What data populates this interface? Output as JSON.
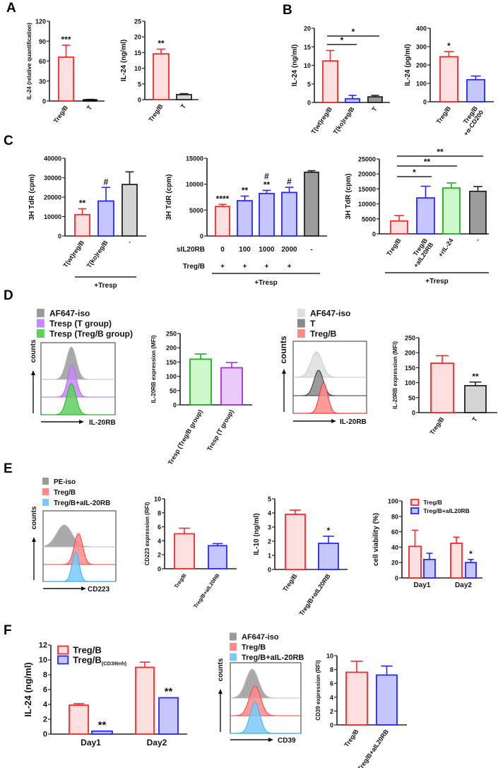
{
  "panels": {
    "A": "A",
    "B": "B",
    "C": "C",
    "D": "D",
    "E": "E",
    "F": "F"
  },
  "styles": {
    "red": [
      "#ff2626",
      "#ffe0e0"
    ],
    "blue": [
      "#2626ff",
      "#c6c6ff"
    ],
    "black": [
      "#111111",
      "#111111"
    ],
    "gray": [
      "#222222",
      "#d4d4d4"
    ],
    "dark": [
      "#222222",
      "#9c9c9c"
    ],
    "green": [
      "#1fae1f",
      "#ccf8cc"
    ],
    "purple": [
      "#a030e0",
      "#eccafa"
    ]
  },
  "chart_data": [
    {
      "id": "A1",
      "type": "bar",
      "ylabel": "IL-24 (relative quantification)",
      "ylim": [
        0,
        120
      ],
      "ticks": [
        0,
        30,
        60,
        90,
        120
      ],
      "categories": [
        "Treg/B",
        "T"
      ],
      "values": [
        66,
        2
      ],
      "errors": [
        18,
        0.5
      ],
      "styles": [
        "red",
        "black"
      ],
      "sig": [
        "***",
        ""
      ]
    },
    {
      "id": "A2",
      "type": "bar",
      "ylabel": "IL-24 (ng/ml)",
      "ylim": [
        0,
        25
      ],
      "ticks": [
        0,
        5,
        10,
        15,
        20,
        25
      ],
      "categories": [
        "Treg/B",
        "T"
      ],
      "values": [
        14.6,
        1.6
      ],
      "errors": [
        1.5,
        0.3
      ],
      "styles": [
        "red",
        "gray"
      ],
      "sig": [
        "**",
        ""
      ]
    },
    {
      "id": "B1",
      "type": "bar",
      "ylabel": "IL-24 (ng/ml)",
      "ylim": [
        0,
        20
      ],
      "ticks": [
        0,
        5,
        10,
        15,
        20
      ],
      "categories": [
        "T(wt)reg/B",
        "T(ko)reg/B",
        "T"
      ],
      "values": [
        11.2,
        1.0,
        1.5
      ],
      "errors": [
        2.8,
        0.9,
        0.4
      ],
      "styles": [
        "red",
        "blue",
        "dark"
      ],
      "sig": [
        "",
        "",
        ""
      ],
      "brackets": [
        {
          "from": 0,
          "to": 2,
          "text": "*"
        },
        {
          "from": 0,
          "to": 1,
          "text": "*"
        }
      ]
    },
    {
      "id": "B2",
      "type": "bar",
      "ylabel": "IL-24 (pg/ml)",
      "ylim": [
        0,
        400
      ],
      "ticks": [
        0,
        100,
        200,
        300,
        400
      ],
      "categories": [
        "Treg/B",
        "Treg/B\n+α-CD200"
      ],
      "values": [
        245,
        120
      ],
      "errors": [
        28,
        20
      ],
      "styles": [
        "red",
        "blue"
      ],
      "sig": [
        "*",
        ""
      ]
    },
    {
      "id": "C1",
      "type": "bar",
      "ylabel": "3H TdR (cpm)",
      "ylim": [
        0,
        40000
      ],
      "ticks": [
        0,
        10000,
        20000,
        30000,
        40000
      ],
      "categories": [
        "T(wt)reg/B",
        "T(ko)reg/B",
        "-"
      ],
      "values": [
        11000,
        18000,
        26500
      ],
      "errors": [
        3000,
        7000,
        6500
      ],
      "styles": [
        "red",
        "blue",
        "gray"
      ],
      "sig": [
        "**",
        "#",
        ""
      ],
      "footer": "+Tresp"
    },
    {
      "id": "C2",
      "type": "bar",
      "ylabel": "3H TdR (cpm)",
      "ylim": [
        0,
        15000
      ],
      "ticks": [
        0,
        5000,
        10000,
        15000
      ],
      "values": [
        5700,
        6800,
        8200,
        8400,
        12300
      ],
      "errors": [
        400,
        900,
        600,
        1000,
        300
      ],
      "styles": [
        "red",
        "blue",
        "blue",
        "blue",
        "dark"
      ],
      "sig": [
        "****",
        "**",
        "#\n**",
        "#",
        ""
      ],
      "rows": [
        {
          "label": "sIL20RB",
          "cells": [
            "0",
            "100",
            "1000",
            "2000",
            "-"
          ]
        },
        {
          "label": "Treg/B",
          "cells": [
            "+",
            "+",
            "+",
            "+",
            ""
          ]
        }
      ],
      "footer": "+Tresp"
    },
    {
      "id": "C3",
      "type": "bar",
      "ylabel": "3H TdR (cpm)",
      "ylim": [
        0,
        25000
      ],
      "ticks": [
        0,
        5000,
        10000,
        15000,
        20000,
        25000
      ],
      "categories": [
        "Treg/B",
        "Treg/B\n+aIL20RB",
        "+rIL-24",
        "-"
      ],
      "values": [
        4300,
        12000,
        15300,
        14200
      ],
      "errors": [
        1800,
        3900,
        1700,
        1600
      ],
      "styles": [
        "red",
        "blue",
        "green",
        "dark"
      ],
      "sig": [
        "",
        "",
        "",
        ""
      ],
      "brackets": [
        {
          "from": 0,
          "to": 3,
          "text": "**"
        },
        {
          "from": 0,
          "to": 2,
          "text": "**"
        },
        {
          "from": 0,
          "to": 1,
          "text": "*"
        }
      ],
      "footer": "+Tresp"
    },
    {
      "id": "D2",
      "type": "bar",
      "ylabel": "IL-20RB expression (MFI)",
      "ylim": [
        0,
        250
      ],
      "ticks": [
        0,
        50,
        100,
        150,
        200,
        250
      ],
      "categories": [
        "Tresp (Treg/B group)",
        "Tresp (T group)"
      ],
      "values": [
        160,
        130
      ],
      "errors": [
        18,
        18
      ],
      "styles": [
        "green",
        "purple"
      ],
      "sig": [
        "",
        ""
      ]
    },
    {
      "id": "D4",
      "type": "bar",
      "ylabel": "IL-20RB expression (MFI)",
      "ylim": [
        0,
        250
      ],
      "ticks": [
        0,
        50,
        100,
        150,
        200,
        250
      ],
      "categories": [
        "Treg/B",
        "T"
      ],
      "values": [
        165,
        90
      ],
      "errors": [
        25,
        12
      ],
      "styles": [
        "red",
        "gray"
      ],
      "sig": [
        "",
        "**"
      ]
    },
    {
      "id": "E2",
      "type": "bar",
      "ylabel": "CD223 expression (RFI)",
      "ylim": [
        0,
        10
      ],
      "ticks": [
        0,
        2,
        4,
        6,
        8,
        10
      ],
      "categories": [
        "Treg/B",
        "Treg/B+aIL20RB"
      ],
      "values": [
        5.0,
        3.3
      ],
      "errors": [
        0.8,
        0.3
      ],
      "styles": [
        "red",
        "blue"
      ],
      "sig": [
        "",
        ""
      ]
    },
    {
      "id": "E3",
      "type": "bar",
      "ylabel": "IL-10 (ng/ml)",
      "ylim": [
        0,
        5
      ],
      "ticks": [
        0,
        1,
        2,
        3,
        4,
        5
      ],
      "categories": [
        "Treg/B",
        "Treg/B+αIL20RB"
      ],
      "values": [
        3.9,
        1.85
      ],
      "errors": [
        0.3,
        0.5
      ],
      "styles": [
        "red",
        "blue"
      ],
      "sig": [
        "",
        "*"
      ]
    },
    {
      "id": "E4",
      "type": "grouped_bar",
      "ylabel": "cell viability (%)",
      "ylim": [
        0,
        100
      ],
      "ticks": [
        0,
        20,
        40,
        60,
        80,
        100
      ],
      "groups": [
        "Day1",
        "Day2"
      ],
      "series": [
        {
          "name": "Treg/B",
          "style": "red",
          "values": [
            41,
            45
          ],
          "errors": [
            21,
            8
          ],
          "sig": [
            "",
            ""
          ]
        },
        {
          "name": "Treg/B+aIL20RB",
          "style": "blue",
          "values": [
            24,
            20
          ],
          "errors": [
            8,
            4
          ],
          "sig": [
            "",
            "*"
          ]
        }
      ],
      "legend": "top-right"
    },
    {
      "id": "F1",
      "type": "grouped_bar",
      "ylabel": "IL-24 (ng/ml)",
      "ylim": [
        0,
        12
      ],
      "ticks": [
        0,
        2,
        4,
        6,
        8,
        10,
        12
      ],
      "groups": [
        "Day1",
        "Day2"
      ],
      "series": [
        {
          "name": "Treg/B",
          "style": "red",
          "values": [
            3.9,
            9.0
          ],
          "errors": [
            0.2,
            0.7
          ],
          "sig": [
            "",
            ""
          ]
        },
        {
          "name": "Treg/B",
          "name_sub": "(CD39inh)",
          "style": "blue",
          "values": [
            0.4,
            4.9
          ],
          "errors": [
            0,
            0
          ],
          "sig": [
            "**",
            "**"
          ]
        }
      ],
      "legend": "top-left"
    },
    {
      "id": "F3",
      "type": "bar",
      "ylabel": "CD39 expression (RFI)",
      "ylim": [
        0,
        10
      ],
      "ticks": [
        0,
        2,
        4,
        6,
        8,
        10
      ],
      "categories": [
        "Treg/B",
        "Treg/B+aIL20RB"
      ],
      "values": [
        7.6,
        7.2
      ],
      "errors": [
        1.6,
        1.3
      ],
      "styles": [
        "red",
        "blue"
      ],
      "sig": [
        "",
        ""
      ]
    }
  ],
  "histograms": [
    {
      "id": "D1",
      "ylabel": "counts",
      "xlabel": "IL-20RB",
      "legend": [
        {
          "label": "AF647-iso",
          "color": "#9a9a9a"
        },
        {
          "label": "Tresp (T group)",
          "color": "#c58af5"
        },
        {
          "label": "Tresp (Treg/B group)",
          "color": "#5fcf5f"
        }
      ],
      "lines": [
        "#bdbdbd",
        "#b46cf0",
        "#28b028"
      ]
    },
    {
      "id": "D3",
      "ylabel": "counts",
      "xlabel": "IL-20RB",
      "legend": [
        {
          "label": "AF647-iso",
          "color": "#dedede"
        },
        {
          "label": "T",
          "color": "#8a8a8a"
        },
        {
          "label": "Treg/B",
          "color": "#ff8a8a"
        }
      ],
      "lines": [
        "#c8c8c8",
        "#333333",
        "#ff3030"
      ]
    },
    {
      "id": "E1",
      "ylabel": "counts",
      "xlabel": "CD223",
      "legend": [
        {
          "label": "PE-iso",
          "color": "#9a9a9a"
        },
        {
          "label": "Treg/B",
          "color": "#ff8a8a"
        },
        {
          "label": "Treg/B+aIL-20RB",
          "color": "#7cc8f8"
        }
      ],
      "lines": [
        "#bdbdbd",
        "#ff4040",
        "#2ab8f0"
      ]
    },
    {
      "id": "F2",
      "ylabel": "counts",
      "xlabel": "CD39",
      "legend": [
        {
          "label": "AF647-iso",
          "color": "#9a9a9a"
        },
        {
          "label": "Treg/B",
          "color": "#ff8a8a"
        },
        {
          "label": "Treg/B+aIL-20RB",
          "color": "#7cc8f8"
        }
      ],
      "lines": [
        "#bdbdbd",
        "#ff4040",
        "#2ab8f0"
      ]
    }
  ]
}
